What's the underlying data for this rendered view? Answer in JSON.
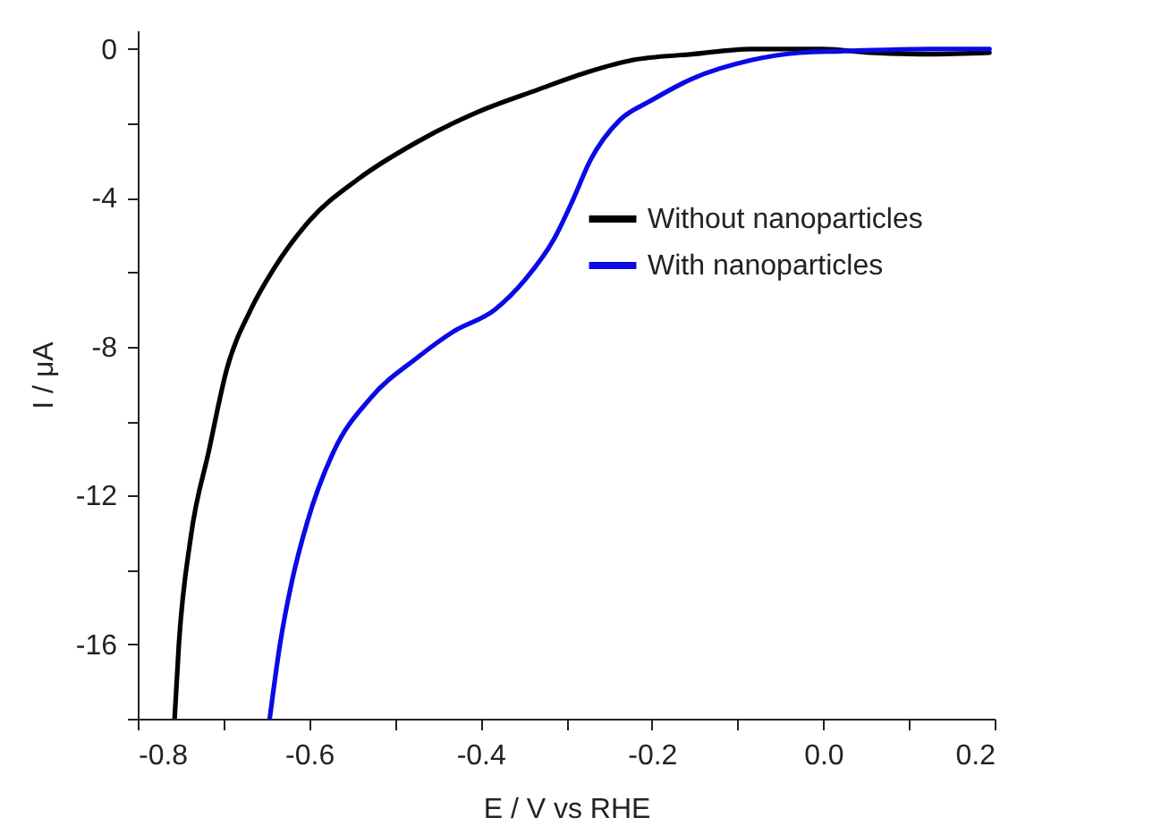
{
  "chart_data": {
    "type": "line",
    "xlabel": "E / V vs RHE",
    "ylabel": "I / μA",
    "xlim": [
      -0.8,
      0.2
    ],
    "xticks": [
      -0.8,
      {
        "value": -0.7,
        "label": null
      },
      -0.6,
      {
        "value": -0.5,
        "label": null
      },
      -0.4,
      {
        "value": -0.3,
        "label": null
      },
      -0.2,
      {
        "value": -0.1,
        "label": null
      },
      {
        "value": 0,
        "label": "0.0"
      },
      {
        "value": 0.1,
        "label": null
      },
      0.2
    ],
    "ylim": [
      -18,
      0.5
    ],
    "yticks": [
      {
        "value": -18,
        "label": null
      },
      -16,
      {
        "value": -14,
        "label": null
      },
      -12,
      {
        "value": -10,
        "label": null
      },
      -8,
      {
        "value": -6,
        "label": null
      },
      -4,
      {
        "value": -2,
        "label": null
      },
      0
    ],
    "grid": false,
    "legend": "right",
    "line_style": "solid",
    "series": [
      {
        "name": "Without nanoparticles",
        "color": "#000000",
        "x": [
          -0.757,
          -0.752,
          -0.738,
          -0.717,
          -0.696,
          -0.668,
          -0.641,
          -0.599,
          -0.543,
          -0.474,
          -0.404,
          -0.334,
          -0.272,
          -0.223,
          -0.153,
          -0.084,
          0.0,
          0.055,
          0.125,
          0.194
        ],
        "values": [
          -18,
          -16,
          -13.1,
          -10.8,
          -8.6,
          -7.0,
          -5.9,
          -4.6,
          -3.5,
          -2.5,
          -1.7,
          -1.1,
          -0.6,
          -0.3,
          -0.14,
          0,
          0,
          -0.1,
          -0.14,
          -0.1
        ]
      },
      {
        "name": "With nanoparticles",
        "color": "#0a0ae6",
        "x": [
          -0.646,
          -0.634,
          -0.62,
          -0.602,
          -0.571,
          -0.529,
          -0.474,
          -0.432,
          -0.383,
          -0.348,
          -0.314,
          -0.293,
          -0.272,
          -0.237,
          -0.202,
          -0.153,
          -0.084,
          -0.028,
          0.02,
          0.125,
          0.194
        ],
        "values": [
          -18,
          -16,
          -14.3,
          -12.7,
          -10.8,
          -9.4,
          -8.3,
          -7.6,
          -7.0,
          -6.2,
          -5.1,
          -4.1,
          -3.0,
          -1.9,
          -1.4,
          -0.8,
          -0.3,
          -0.1,
          -0.06,
          0,
          0
        ]
      }
    ]
  }
}
